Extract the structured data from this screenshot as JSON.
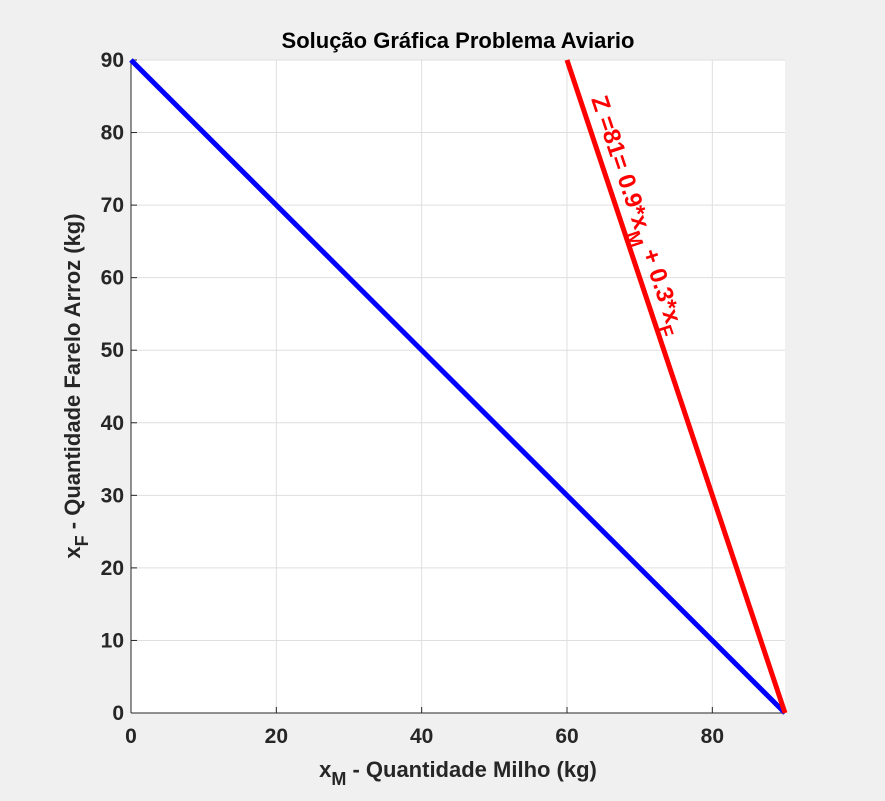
{
  "chart_data": {
    "type": "line",
    "title": "Solução Gráfica Problema Aviario",
    "xlabel": {
      "main": "x",
      "sub": "M",
      "rest": " - Quantidade Milho (kg)"
    },
    "ylabel": {
      "main": "x",
      "sub": "F",
      "rest": " - Quantidade Farelo Arroz (kg)"
    },
    "xlim": [
      0,
      90
    ],
    "ylim": [
      0,
      90
    ],
    "xticks": [
      0,
      20,
      40,
      60,
      80
    ],
    "yticks": [
      0,
      10,
      20,
      30,
      40,
      50,
      60,
      70,
      80,
      90
    ],
    "grid": true,
    "series": [
      {
        "color": "#0000ff",
        "x": [
          0,
          90
        ],
        "y": [
          90,
          0
        ]
      },
      {
        "color": "#ff0000",
        "x": [
          60,
          90
        ],
        "y": [
          90,
          0
        ]
      }
    ],
    "annotation": {
      "color": "#ff0000",
      "parts": [
        {
          "t": "Z =81= 0.9*x",
          "sub": false
        },
        {
          "t": "M",
          "sub": true
        },
        {
          "t": " + 0.3*x",
          "sub": false
        },
        {
          "t": "F",
          "sub": true
        }
      ]
    }
  }
}
